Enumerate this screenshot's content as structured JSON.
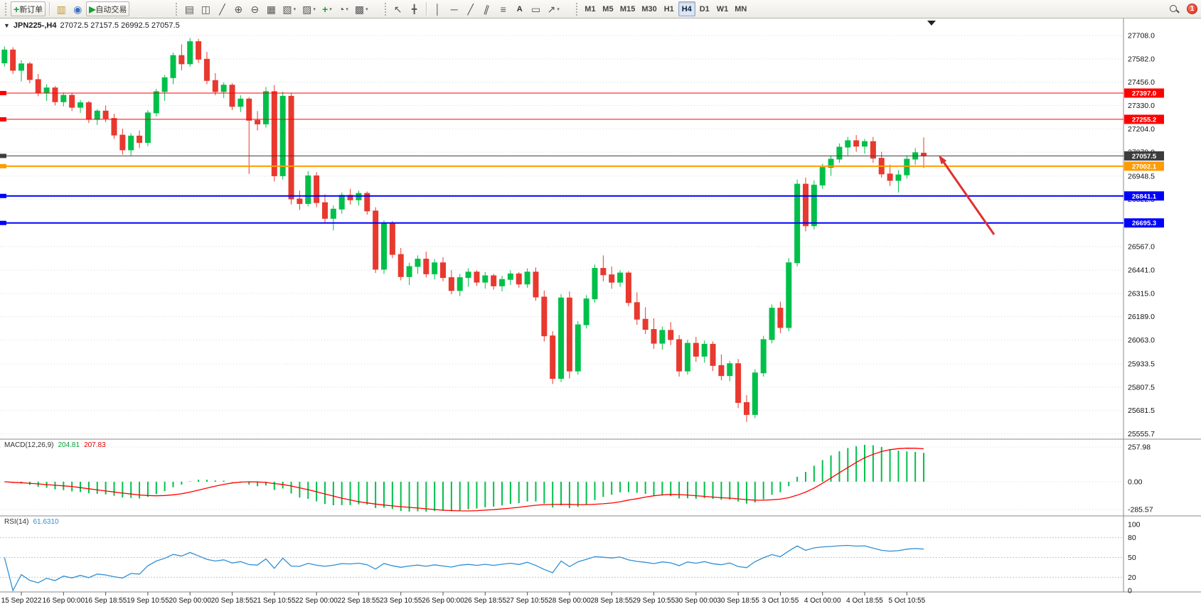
{
  "toolbar": {
    "new_order": "新订单",
    "autotrading": "自动交易",
    "text_tool_label": "A",
    "timeframes": [
      "M1",
      "M5",
      "M15",
      "M30",
      "H1",
      "H4",
      "D1",
      "W1",
      "MN"
    ],
    "active_timeframe": "H4",
    "notification_count": "1"
  },
  "icons": {
    "one_click": "▼",
    "new_order": "+",
    "charts": "▥",
    "market_watch": "◉",
    "autotrade": "▶",
    "bar_type": "▤",
    "candle_type": "◫",
    "line_type": "╱",
    "zoom_in": "⊕",
    "zoom_out": "⊖",
    "tile": "▦",
    "cascade": "▧",
    "arrange": "▨",
    "indicators": "+",
    "periods": "◔",
    "templates": "▩",
    "cursor": "↖",
    "crosshair": "╋",
    "vline": "│",
    "hline": "─",
    "trendline": "╱",
    "channel": "∥",
    "fibonacci": "≡",
    "text_label": "▭",
    "arrows": "↗",
    "dropdown": "▾"
  },
  "chart": {
    "symbol_period": "JPN225-,H4",
    "ohlc_readout": "27072.5 27157.5 26992.5 27057.5"
  },
  "chart_data": {
    "type": "candlestick",
    "symbol": "JPN225-",
    "timeframe": "H4",
    "current_bar": {
      "open": 27072.5,
      "high": 27157.5,
      "low": 26992.5,
      "close": 27057.5
    },
    "colors": {
      "bull": "#00c04a",
      "bear": "#e8392e",
      "background": "#ffffff",
      "grid": "#d8d8d8",
      "rsi_line": "#2e8fd5",
      "macd_signal": "#ff0000"
    },
    "price_axis_labels": [
      "27708.0",
      "27582.0",
      "27456.0",
      "27330.0",
      "27204.0",
      "27078.0",
      "26948.5",
      "26822.5",
      "26696.5",
      "26567.0",
      "26441.0",
      "26315.0",
      "26189.0",
      "26063.0",
      "25933.5",
      "25807.5",
      "25681.5",
      "25555.7"
    ],
    "time_axis_labels": [
      "15 Sep 2022",
      "16 Sep 00:00",
      "16 Sep 18:55",
      "19 Sep 10:55",
      "20 Sep 00:00",
      "20 Sep 18:55",
      "21 Sep 10:55",
      "22 Sep 00:00",
      "22 Sep 18:55",
      "23 Sep 10:55",
      "26 Sep 00:00",
      "26 Sep 18:55",
      "27 Sep 10:55",
      "28 Sep 00:00",
      "28 Sep 18:55",
      "29 Sep 10:55",
      "30 Sep 00:00",
      "30 Sep 18:55",
      "3 Oct 10:55",
      "4 Oct 00:00",
      "4 Oct 18:55",
      "5 Oct 10:55"
    ],
    "horizontal_levels": [
      {
        "price": 27397.0,
        "label": "27397.0",
        "color": "#ff0000",
        "width": 1
      },
      {
        "price": 27255.2,
        "label": "27255.2",
        "color": "#ff0000",
        "width": 1
      },
      {
        "price": 27057.5,
        "label": "27057.5",
        "color": "#3c3c3c",
        "width": 1,
        "role": "current-price"
      },
      {
        "price": 27002.1,
        "label": "27002.1",
        "color": "#ff9c00",
        "width": 2
      },
      {
        "price": 26841.1,
        "label": "26841.1",
        "color": "#0000ff",
        "width": 2
      },
      {
        "price": 26695.3,
        "label": "26695.3",
        "color": "#0000ff",
        "width": 2
      }
    ],
    "annotations": [
      {
        "type": "arrow",
        "color": "#e03030",
        "from_xy": [
          1398,
          304
        ],
        "to_xy": [
          1320,
          192
        ]
      }
    ],
    "indicators": [
      {
        "name": "MACD",
        "label": "MACD(12,26,9)",
        "value_main": "204.81",
        "value_signal": "207.83",
        "scale_labels": [
          "257.98",
          "0.00",
          "-285.57"
        ],
        "main_color": "#00c04a",
        "signal_color": "#ff0000"
      },
      {
        "name": "RSI",
        "label": "RSI(14)",
        "value": "61.6310",
        "scale_labels": [
          "100",
          "80",
          "50",
          "20",
          "0"
        ],
        "levels": [
          80,
          50,
          20
        ],
        "color": "#2e8fd5"
      }
    ],
    "candles_ohlc": [
      [
        27560,
        27650,
        27540,
        27630
      ],
      [
        27630,
        27645,
        27500,
        27520
      ],
      [
        27520,
        27575,
        27460,
        27555
      ],
      [
        27555,
        27565,
        27450,
        27470
      ],
      [
        27470,
        27500,
        27380,
        27400
      ],
      [
        27400,
        27445,
        27355,
        27425
      ],
      [
        27425,
        27435,
        27330,
        27350
      ],
      [
        27350,
        27400,
        27325,
        27385
      ],
      [
        27385,
        27395,
        27300,
        27320
      ],
      [
        27320,
        27360,
        27290,
        27345
      ],
      [
        27345,
        27355,
        27235,
        27255
      ],
      [
        27255,
        27310,
        27225,
        27300
      ],
      [
        27300,
        27330,
        27240,
        27260
      ],
      [
        27260,
        27285,
        27150,
        27170
      ],
      [
        27170,
        27205,
        27065,
        27090
      ],
      [
        27090,
        27180,
        27060,
        27165
      ],
      [
        27165,
        27195,
        27100,
        27130
      ],
      [
        27130,
        27305,
        27110,
        27290
      ],
      [
        27290,
        27420,
        27270,
        27405
      ],
      [
        27405,
        27495,
        27355,
        27480
      ],
      [
        27480,
        27615,
        27445,
        27600
      ],
      [
        27600,
        27660,
        27520,
        27555
      ],
      [
        27555,
        27695,
        27540,
        27675
      ],
      [
        27675,
        27690,
        27560,
        27580
      ],
      [
        27580,
        27620,
        27445,
        27465
      ],
      [
        27465,
        27505,
        27385,
        27405
      ],
      [
        27405,
        27455,
        27370,
        27440
      ],
      [
        27440,
        27450,
        27305,
        27325
      ],
      [
        27325,
        27385,
        27295,
        27365
      ],
      [
        27365,
        27375,
        26960,
        27250
      ],
      [
        27250,
        27300,
        27195,
        27230
      ],
      [
        27230,
        27430,
        27210,
        27405
      ],
      [
        27405,
        27440,
        26920,
        26950
      ],
      [
        26950,
        27405,
        26930,
        27380
      ],
      [
        27380,
        27395,
        26795,
        26825
      ],
      [
        26825,
        26870,
        26765,
        26800
      ],
      [
        26800,
        26975,
        26785,
        26950
      ],
      [
        26950,
        26970,
        26780,
        26805
      ],
      [
        26805,
        26850,
        26695,
        26720
      ],
      [
        26720,
        26790,
        26655,
        26770
      ],
      [
        26770,
        26860,
        26745,
        26845
      ],
      [
        26845,
        26880,
        26795,
        26820
      ],
      [
        26820,
        26870,
        26790,
        26855
      ],
      [
        26855,
        26865,
        26740,
        26760
      ],
      [
        26760,
        26780,
        26425,
        26445
      ],
      [
        26445,
        26710,
        26420,
        26690
      ],
      [
        26690,
        26705,
        26505,
        26525
      ],
      [
        26525,
        26560,
        26385,
        26405
      ],
      [
        26405,
        26480,
        26360,
        26460
      ],
      [
        26460,
        26520,
        26420,
        26500
      ],
      [
        26500,
        26540,
        26400,
        26420
      ],
      [
        26420,
        26500,
        26390,
        26480
      ],
      [
        26480,
        26510,
        26380,
        26400
      ],
      [
        26400,
        26440,
        26310,
        26330
      ],
      [
        26330,
        26420,
        26300,
        26400
      ],
      [
        26400,
        26450,
        26350,
        26430
      ],
      [
        26430,
        26440,
        26355,
        26375
      ],
      [
        26375,
        26430,
        26340,
        26410
      ],
      [
        26410,
        26420,
        26335,
        26355
      ],
      [
        26355,
        26410,
        26325,
        26390
      ],
      [
        26390,
        26440,
        26360,
        26420
      ],
      [
        26420,
        26430,
        26345,
        26365
      ],
      [
        26365,
        26450,
        26345,
        26430
      ],
      [
        26430,
        26455,
        26275,
        26295
      ],
      [
        26295,
        26330,
        26055,
        26085
      ],
      [
        26085,
        26110,
        25825,
        25855
      ],
      [
        25855,
        26310,
        25835,
        26290
      ],
      [
        26290,
        26325,
        25855,
        25895
      ],
      [
        25895,
        26165,
        25875,
        26145
      ],
      [
        26145,
        26305,
        26125,
        26285
      ],
      [
        26285,
        26470,
        26265,
        26450
      ],
      [
        26450,
        26520,
        26380,
        26415
      ],
      [
        26415,
        26460,
        26340,
        26375
      ],
      [
        26375,
        26440,
        26350,
        26425
      ],
      [
        26425,
        26435,
        26245,
        26265
      ],
      [
        26265,
        26320,
        26145,
        26175
      ],
      [
        26175,
        26240,
        26095,
        26120
      ],
      [
        26120,
        26180,
        26015,
        26045
      ],
      [
        26045,
        26135,
        26010,
        26115
      ],
      [
        26115,
        26160,
        26035,
        26065
      ],
      [
        26065,
        26090,
        25865,
        25895
      ],
      [
        25895,
        26065,
        25875,
        26045
      ],
      [
        26045,
        26080,
        25945,
        25975
      ],
      [
        25975,
        26060,
        25940,
        26040
      ],
      [
        26040,
        26055,
        25895,
        25925
      ],
      [
        25925,
        25985,
        25845,
        25870
      ],
      [
        25870,
        25950,
        25840,
        25935
      ],
      [
        25935,
        25960,
        25695,
        25725
      ],
      [
        25725,
        25765,
        25620,
        25660
      ],
      [
        25660,
        25905,
        25640,
        25885
      ],
      [
        25885,
        26085,
        25865,
        26065
      ],
      [
        26065,
        26255,
        26045,
        26235
      ],
      [
        26235,
        26270,
        26100,
        26130
      ],
      [
        26130,
        26505,
        26110,
        26480
      ],
      [
        26480,
        26930,
        26460,
        26905
      ],
      [
        26905,
        26940,
        26650,
        26680
      ],
      [
        26680,
        26925,
        26660,
        26900
      ],
      [
        26900,
        27015,
        26880,
        26995
      ],
      [
        26995,
        27060,
        26950,
        27040
      ],
      [
        27040,
        27125,
        27020,
        27105
      ],
      [
        27105,
        27160,
        27060,
        27140
      ],
      [
        27140,
        27170,
        27080,
        27110
      ],
      [
        27110,
        27150,
        27070,
        27135
      ],
      [
        27135,
        27160,
        27020,
        27045
      ],
      [
        27045,
        27080,
        26940,
        26960
      ],
      [
        26960,
        27010,
        26895,
        26925
      ],
      [
        26925,
        26980,
        26860,
        26955
      ],
      [
        26955,
        27060,
        26935,
        27040
      ],
      [
        27040,
        27100,
        27010,
        27075
      ],
      [
        27072.5,
        27157.5,
        26992.5,
        27057.5
      ]
    ]
  }
}
